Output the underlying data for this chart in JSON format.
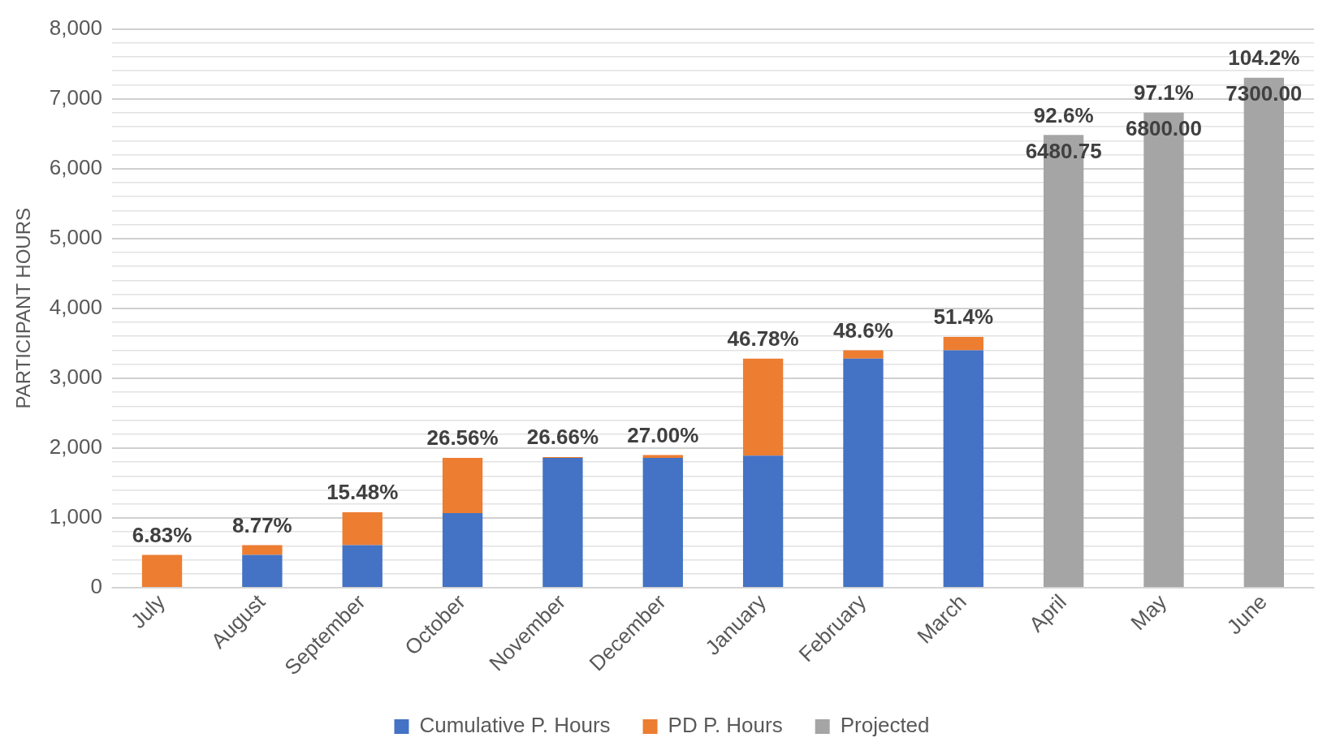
{
  "chart_data": {
    "type": "bar",
    "stacked": true,
    "ylabel": "PARTICIPANT HOURS",
    "categories": [
      "July",
      "August",
      "September",
      "October",
      "November",
      "December",
      "January",
      "February",
      "March",
      "April",
      "May",
      "June"
    ],
    "series": [
      {
        "name": "Cumulative P. Hours",
        "color": "#4472c4",
        "values": [
          0,
          470,
          610,
          1070,
          1860,
          1860,
          1890,
          3280,
          3400,
          null,
          null,
          null
        ]
      },
      {
        "name": "PD P. Hours",
        "color": "#ed7d31",
        "values": [
          470,
          140,
          470,
          790,
          10,
          40,
          1390,
          120,
          190,
          null,
          null,
          null
        ]
      },
      {
        "name": "Projected",
        "color": "#a5a5a5",
        "values": [
          null,
          null,
          null,
          null,
          null,
          null,
          null,
          null,
          null,
          6480.75,
          6800,
          7300
        ],
        "value_labels": [
          null,
          null,
          null,
          null,
          null,
          null,
          null,
          null,
          null,
          "6480.75",
          "6800.00",
          "7300.00"
        ]
      }
    ],
    "annotations": [
      {
        "text": "6.83%",
        "x": "July",
        "y": 470
      },
      {
        "text": "8.77%",
        "x": "August",
        "y": 610
      },
      {
        "text": "15.48%",
        "x": "September",
        "y": 1080
      },
      {
        "text": "26.56%",
        "x": "October",
        "y": 1860
      },
      {
        "text": "26.66%",
        "x": "November",
        "y": 1870
      },
      {
        "text": "27.00%",
        "x": "December",
        "y": 1895
      },
      {
        "text": "46.78%",
        "x": "January",
        "y": 3280
      },
      {
        "text": "48.6%",
        "x": "February",
        "y": 3400
      },
      {
        "text": "51.4%",
        "x": "March",
        "y": 3590
      },
      {
        "text": "92.6%",
        "x": "April",
        "y": 6480.75
      },
      {
        "text": "97.1%",
        "x": "May",
        "y": 6800
      },
      {
        "text": "104.2%",
        "x": "June",
        "y": 7300
      }
    ],
    "ylim": [
      0,
      8000
    ],
    "yticks": [
      0,
      {
        "value": 200,
        "label": null
      },
      {
        "value": 400,
        "label": null
      },
      {
        "value": 600,
        "label": null
      },
      {
        "value": 800,
        "label": null
      },
      {
        "value": 1000,
        "label": "1,000"
      },
      {
        "value": 1200,
        "label": null
      },
      {
        "value": 1400,
        "label": null
      },
      {
        "value": 1600,
        "label": null
      },
      {
        "value": 1800,
        "label": null
      },
      {
        "value": 2000,
        "label": "2,000"
      },
      {
        "value": 2200,
        "label": null
      },
      {
        "value": 2400,
        "label": null
      },
      {
        "value": 2600,
        "label": null
      },
      {
        "value": 2800,
        "label": null
      },
      {
        "value": 3000,
        "label": "3,000"
      },
      {
        "value": 3200,
        "label": null
      },
      {
        "value": 3400,
        "label": null
      },
      {
        "value": 3600,
        "label": null
      },
      {
        "value": 3800,
        "label": null
      },
      {
        "value": 4000,
        "label": "4,000"
      },
      {
        "value": 4200,
        "label": null
      },
      {
        "value": 4400,
        "label": null
      },
      {
        "value": 4600,
        "label": null
      },
      {
        "value": 4800,
        "label": null
      },
      {
        "value": 5000,
        "label": "5,000"
      },
      {
        "value": 5200,
        "label": null
      },
      {
        "value": 5400,
        "label": null
      },
      {
        "value": 5600,
        "label": null
      },
      {
        "value": 5800,
        "label": null
      },
      {
        "value": 6000,
        "label": "6,000"
      },
      {
        "value": 6200,
        "label": null
      },
      {
        "value": 6400,
        "label": null
      },
      {
        "value": 6600,
        "label": null
      },
      {
        "value": 6800,
        "label": null
      },
      {
        "value": 7000,
        "label": "7,000"
      },
      {
        "value": 7200,
        "label": null
      },
      {
        "value": 7400,
        "label": null
      },
      {
        "value": 7600,
        "label": null
      },
      {
        "value": 7800,
        "label": null
      },
      {
        "value": 8000,
        "label": "8,000"
      }
    ],
    "grid": "y",
    "legend": "bottom"
  }
}
